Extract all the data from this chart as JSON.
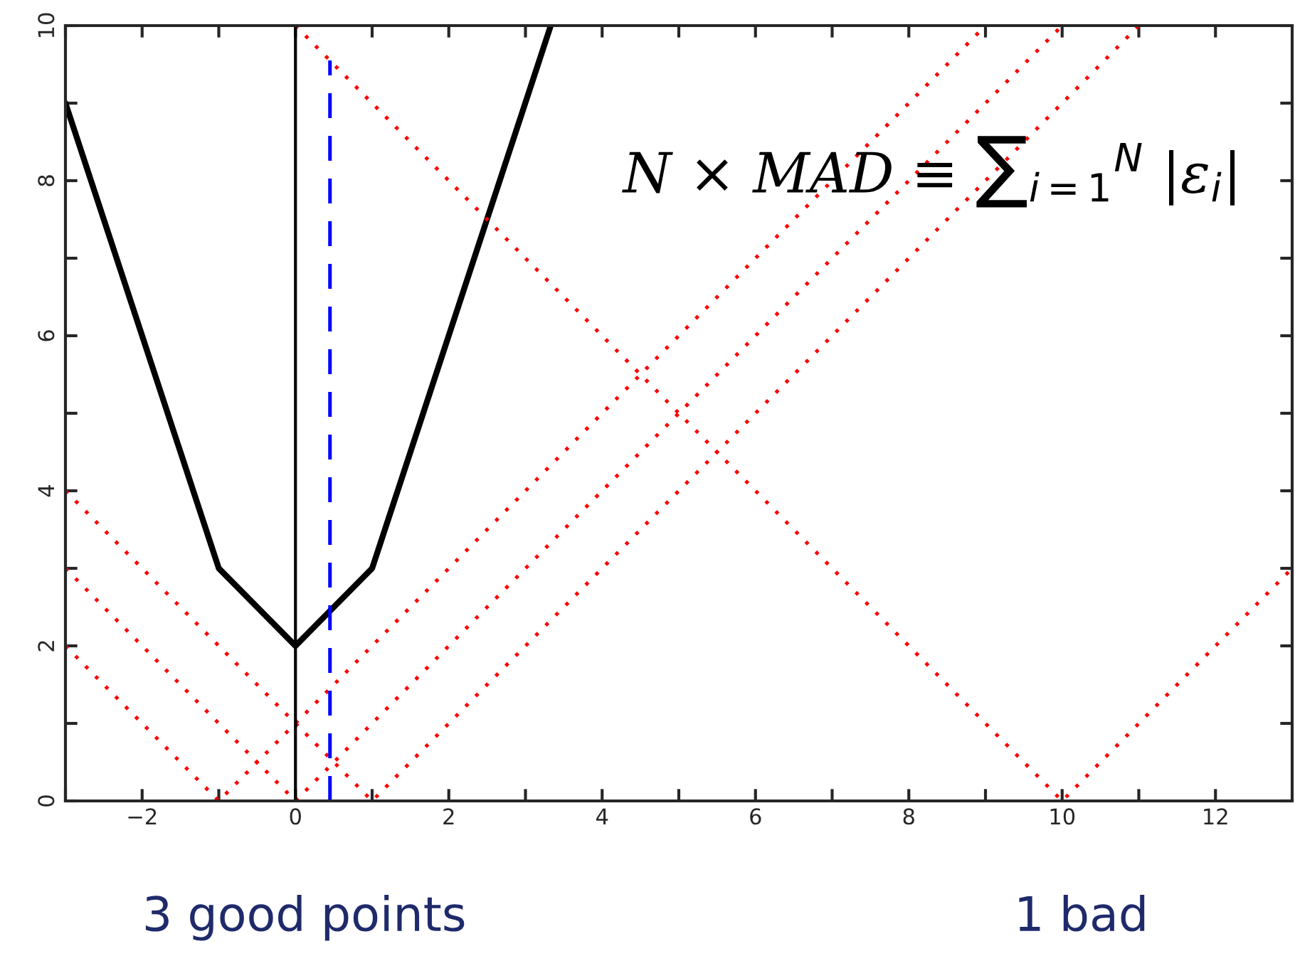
{
  "chart_data": {
    "type": "line",
    "series": [
      {
        "color": "#000000",
        "line_style": "solid",
        "x": [
          -3,
          -1,
          0,
          1,
          3.33
        ],
        "values": [
          9,
          3,
          2,
          3,
          10
        ]
      },
      {
        "color": "#ff0000",
        "line_style": "dotted",
        "x": [
          -3,
          -1,
          9
        ],
        "values": [
          2,
          0,
          10
        ]
      },
      {
        "color": "#ff0000",
        "line_style": "dotted",
        "x": [
          -3,
          0,
          10
        ],
        "values": [
          3,
          0,
          10
        ]
      },
      {
        "color": "#ff0000",
        "line_style": "dotted",
        "x": [
          -3,
          1,
          11
        ],
        "values": [
          4,
          0,
          10
        ]
      },
      {
        "color": "#ff0000",
        "line_style": "dotted",
        "x": [
          0,
          10,
          13
        ],
        "values": [
          10,
          0,
          3
        ]
      },
      {
        "color": "#0000ff",
        "line_style": "dashed",
        "x": [
          0.45,
          0.45
        ],
        "values": [
          0,
          9.55
        ]
      }
    ],
    "ref_lines": [
      {
        "axis": "x",
        "value": 0,
        "color": "#000000",
        "line_style": "solid"
      }
    ],
    "xlim": [
      -3,
      13
    ],
    "ylim": [
      0,
      10
    ],
    "xticks": [
      {
        "value": -3,
        "label": null
      },
      -2,
      {
        "value": -1,
        "label": null
      },
      0,
      {
        "value": 1,
        "label": null
      },
      2,
      {
        "value": 3,
        "label": null
      },
      4,
      {
        "value": 5,
        "label": null
      },
      6,
      {
        "value": 7,
        "label": null
      },
      8,
      {
        "value": 9,
        "label": null
      },
      10,
      {
        "value": 11,
        "label": null
      },
      12
    ],
    "yticks": [
      0,
      {
        "value": 1,
        "label": null
      },
      2,
      {
        "value": 3,
        "label": null
      },
      4,
      {
        "value": 5,
        "label": null
      },
      6,
      {
        "value": 7,
        "label": null
      },
      8,
      {
        "value": 9,
        "label": null
      },
      10
    ],
    "grid": false,
    "annotations": [
      "N × MAD ≡ ∑$_{i=1}$$^{N}$ |ε$_{i}$|",
      "3 good points",
      "1 bad"
    ]
  }
}
